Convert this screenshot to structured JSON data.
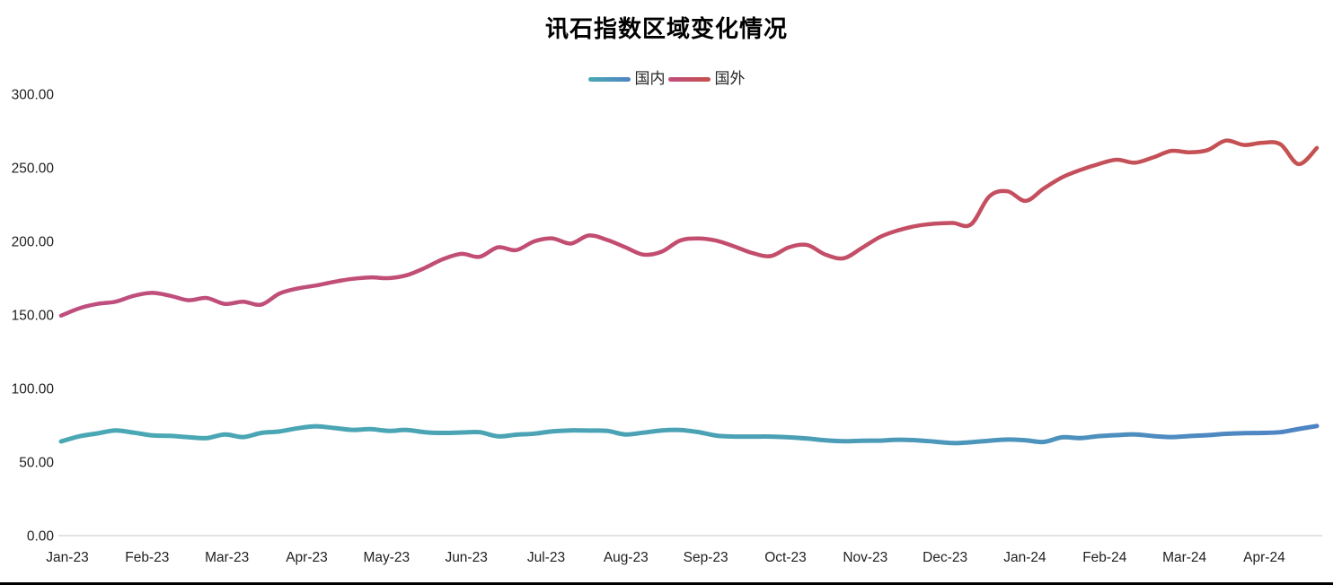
{
  "title": "讯石指数区域变化情况",
  "axis": {
    "y_ticks": [
      "0.00",
      "50.00",
      "100.00",
      "150.00",
      "200.00",
      "250.00",
      "300.00"
    ],
    "x_ticks": [
      "Jan-23",
      "Feb-23",
      "Mar-23",
      "Apr-23",
      "May-23",
      "Jun-23",
      "Jul-23",
      "Aug-23",
      "Sep-23",
      "Oct-23",
      "Nov-23",
      "Dec-23",
      "Jan-24",
      "Feb-24",
      "Mar-24",
      "Apr-24"
    ]
  },
  "colors": {
    "domestic_start": "#4AA8B4",
    "domestic_mid": "#4BA1B5",
    "domestic_end": "#4E84C4",
    "foreign_start": "#BF4E7F",
    "foreign_mid": "#C34D6C",
    "foreign_end": "#C5514F",
    "zero_axis_line": "#D9D9D9",
    "tick_text": "#1F1F1F",
    "bottom_border": "#000000"
  },
  "chart_data": {
    "type": "line",
    "title": "讯石指数区域变化情况",
    "xlabel": "",
    "ylabel": "",
    "ylim": [
      0,
      300
    ],
    "y_tick_step": 50,
    "grid": "off",
    "legend_position": "top-center",
    "sampling": "weekly",
    "x_tick_labels": [
      "Jan-23",
      "Feb-23",
      "Mar-23",
      "Apr-23",
      "May-23",
      "Jun-23",
      "Jul-23",
      "Aug-23",
      "Sep-23",
      "Oct-23",
      "Nov-23",
      "Dec-23",
      "Jan-24",
      "Feb-24",
      "Mar-24",
      "Apr-24"
    ],
    "series": [
      {
        "name": "国内",
        "color_gradient": [
          "#4AA8B4",
          "#4BA1B5",
          "#4E84C4"
        ],
        "values": [
          64,
          67.5,
          69.5,
          71.5,
          70,
          68.2,
          67.8,
          66.9,
          66.3,
          68.8,
          67,
          69.8,
          70.8,
          73,
          74.3,
          73.2,
          71.9,
          72.4,
          71.2,
          71.8,
          70.3,
          69.8,
          70.1,
          70.3,
          67.5,
          68.6,
          69.3,
          70.9,
          71.5,
          71.4,
          71.2,
          68.8,
          70,
          71.5,
          71.8,
          70.4,
          68,
          67.3,
          67.3,
          67.3,
          66.8,
          66,
          64.8,
          64.2,
          64.5,
          64.6,
          65.2,
          64.8,
          63.9,
          62.9,
          63.5,
          64.5,
          65.3,
          64.8,
          63.7,
          66.8,
          66.3,
          67.6,
          68.3,
          68.8,
          67.7,
          67,
          67.7,
          68.3,
          69.2,
          69.7,
          69.8,
          70.3,
          72.5,
          74.5
        ]
      },
      {
        "name": "国外",
        "color_gradient": [
          "#BF4E7F",
          "#C34D6C",
          "#C5514F"
        ],
        "values": [
          149.5,
          154.5,
          157.5,
          159,
          163,
          165,
          163,
          160,
          161.5,
          157.5,
          159,
          157,
          164.5,
          168,
          170,
          172.5,
          174.5,
          175.5,
          175,
          177,
          182,
          188,
          191.5,
          189.5,
          196,
          194,
          200,
          202,
          198.5,
          204,
          201,
          196,
          191,
          193,
          200.5,
          202,
          200.5,
          196.5,
          192,
          190,
          196,
          197.5,
          191,
          188.5,
          195.5,
          203,
          207.5,
          210.5,
          212,
          212.5,
          211.5,
          230.5,
          234,
          227.5,
          236,
          243.5,
          248.5,
          252.5,
          255.5,
          253.5,
          257,
          261.5,
          260.5,
          262,
          268.5,
          265.5,
          267,
          266,
          252.5,
          263.5
        ]
      }
    ]
  }
}
